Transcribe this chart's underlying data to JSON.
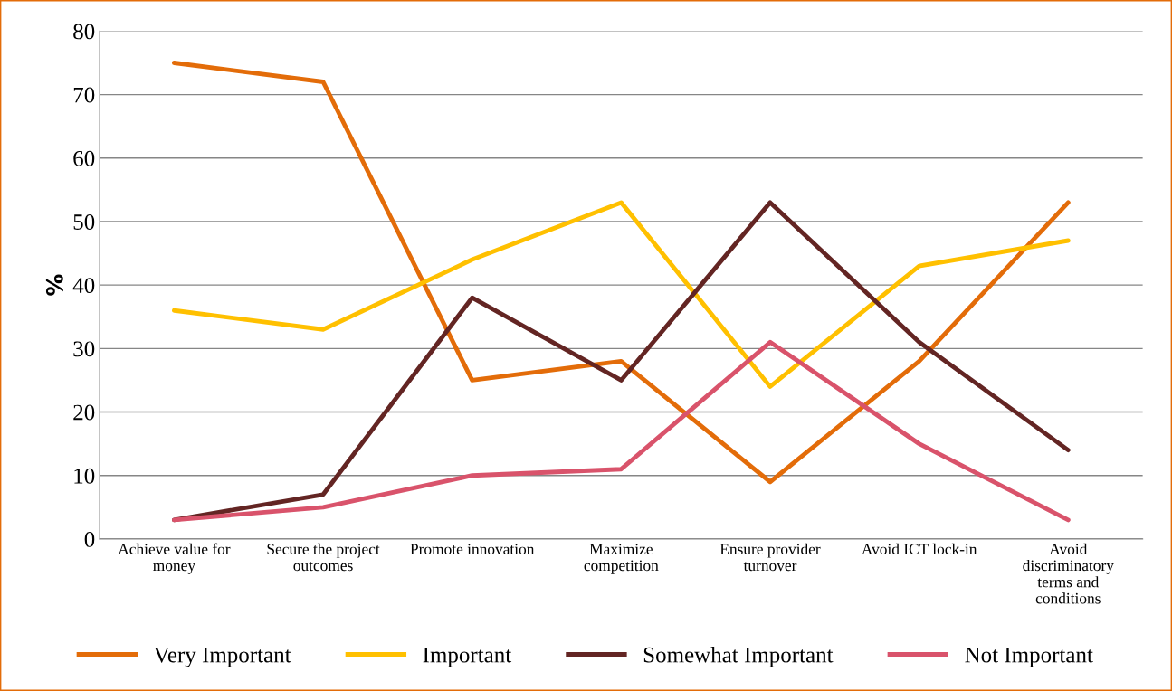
{
  "chart_data": {
    "type": "line",
    "ylabel": "%",
    "categories": [
      "Achieve value for money",
      "Secure the project outcomes",
      "Promote innovation",
      "Maximize competition",
      "Ensure provider turnover",
      "Avoid ICT lock-in",
      "Avoid discriminatory terms and conditions"
    ],
    "series": [
      {
        "name": "Very Important",
        "color": "#e36c09",
        "values": [
          75,
          72,
          25,
          28,
          9,
          28,
          53
        ]
      },
      {
        "name": "Important",
        "color": "#ffc000",
        "values": [
          36,
          33,
          44,
          53,
          24,
          43,
          47
        ]
      },
      {
        "name": "Somewhat Important",
        "color": "#632523",
        "values": [
          3,
          7,
          38,
          25,
          53,
          31,
          14
        ]
      },
      {
        "name": "Not Important",
        "color": "#d9536b",
        "values": [
          3,
          5,
          10,
          11,
          31,
          15,
          3
        ]
      }
    ],
    "ylim": [
      0,
      80
    ],
    "yticks": [
      0,
      10,
      20,
      30,
      40,
      50,
      60,
      70,
      80
    ],
    "grid": "y",
    "legend": "bottom",
    "marker": "none",
    "line_style": "solid"
  }
}
